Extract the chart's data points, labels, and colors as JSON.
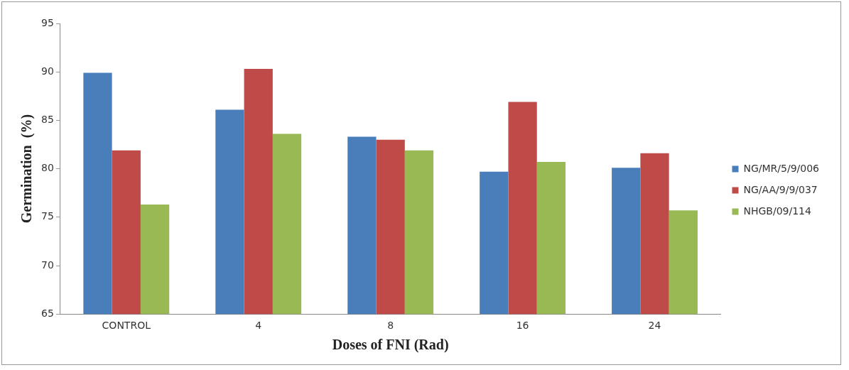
{
  "chart_data": {
    "type": "bar",
    "xlabel": "Doses of FNI (Rad)",
    "ylabel": "Germination  (%)",
    "categories": [
      "CONTROL",
      "4",
      "8",
      "16",
      "24"
    ],
    "series": [
      {
        "name": "NG/MR/5/9/006",
        "color": "#4a7ebb",
        "values": [
          89.9,
          86.1,
          83.3,
          79.7,
          80.1
        ]
      },
      {
        "name": "NG/AA/9/9/037",
        "color": "#be4b48",
        "values": [
          81.9,
          90.3,
          83.0,
          86.9,
          81.6
        ]
      },
      {
        "name": "NHGB/09/114",
        "color": "#98b954",
        "values": [
          76.3,
          83.6,
          81.9,
          80.7,
          75.7
        ]
      }
    ],
    "ylim": [
      65,
      95
    ],
    "yticks": [
      65,
      70,
      75,
      80,
      85,
      90,
      95
    ],
    "grid": false,
    "legend": "right"
  }
}
